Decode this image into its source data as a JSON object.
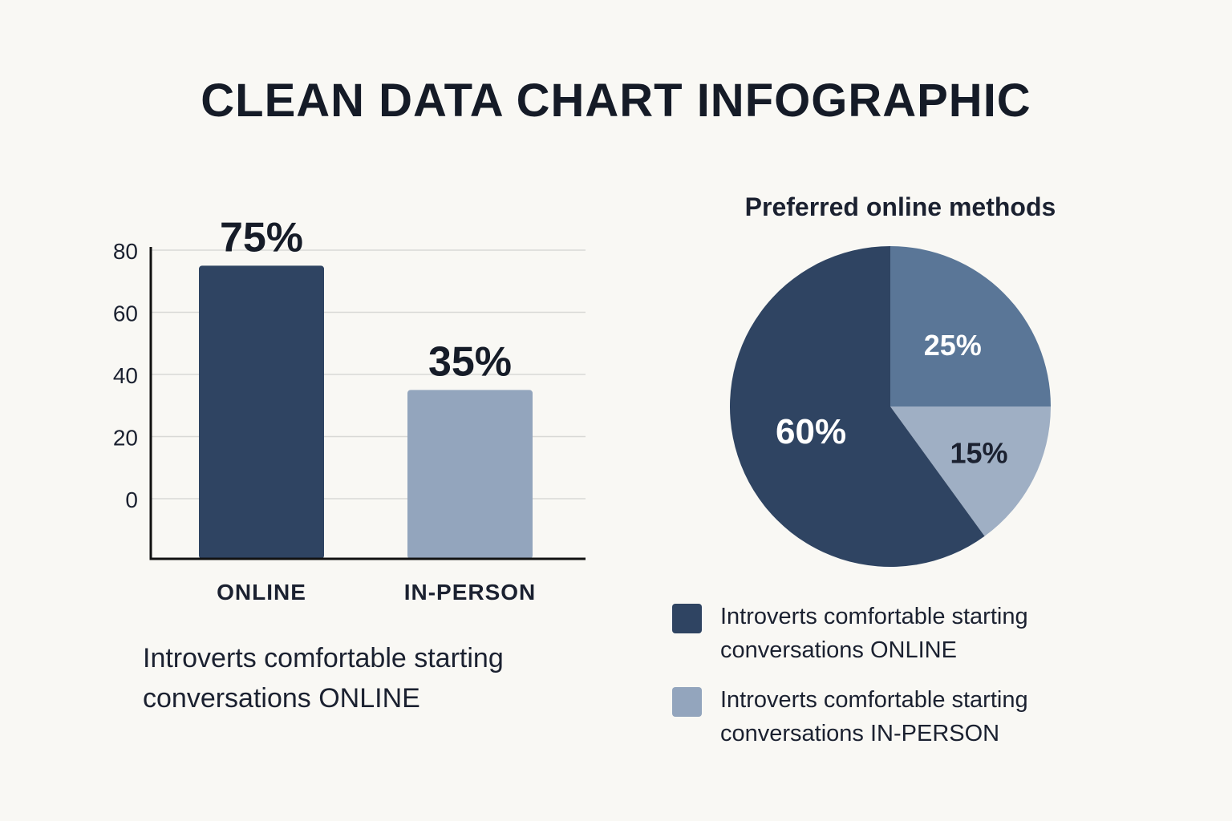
{
  "title": "CLEAN DATA CHART INFOGRAPHIC",
  "colors": {
    "dark": "#2f4462",
    "mid": "#5a7697",
    "light": "#93a5bd",
    "grid": "#d9d9d6",
    "axis": "#111111"
  },
  "chart_data": [
    {
      "type": "bar",
      "categories": [
        "ONLINE",
        "IN-PERSON"
      ],
      "values": [
        75,
        35
      ],
      "data_labels": [
        "75%",
        "35%"
      ],
      "yticks": [
        "80",
        "60",
        "40",
        "20",
        "0"
      ],
      "ylim": [
        0,
        80
      ],
      "grid": true,
      "caption": "Introverts comfortable starting conversations ONLINE"
    },
    {
      "type": "pie",
      "title": "Preferred online methods",
      "slices": [
        {
          "label": "25%",
          "value": 25,
          "color": "#5a7697"
        },
        {
          "label": "15%",
          "value": 15,
          "color": "#9fafc4"
        },
        {
          "label": "60%",
          "value": 60,
          "color": "#2f4462"
        }
      ],
      "legend": [
        {
          "text": "Introverts comfortable starting conversations ONLINE",
          "color": "#2f4462"
        },
        {
          "text": "Introverts comfortable starting conversations IN-PERSON",
          "color": "#93a5bd"
        }
      ],
      "legend_position": "bottom"
    }
  ]
}
